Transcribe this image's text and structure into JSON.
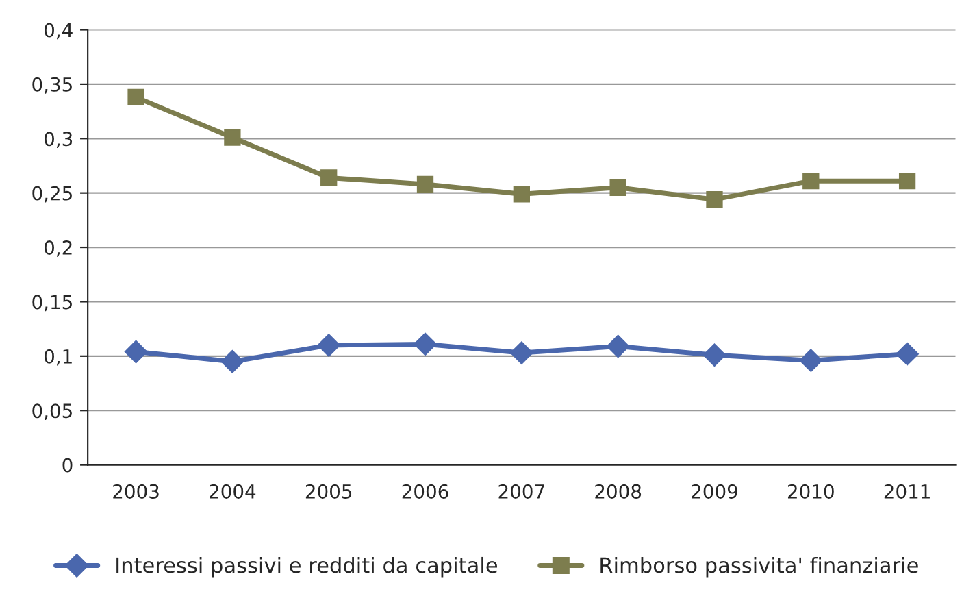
{
  "chart_data": {
    "type": "line",
    "categories": [
      "2003",
      "2004",
      "2005",
      "2006",
      "2007",
      "2008",
      "2009",
      "2010",
      "2011"
    ],
    "series": [
      {
        "name": "Interessi passivi e redditi da capitale",
        "color": "#4a67ad",
        "marker": "diamond",
        "values": [
          0.104,
          0.095,
          0.11,
          0.111,
          0.103,
          0.109,
          0.101,
          0.096,
          0.102
        ]
      },
      {
        "name": "Rimborso passivita' finanziarie",
        "color": "#7d7d4e",
        "marker": "square",
        "values": [
          0.338,
          0.301,
          0.264,
          0.258,
          0.249,
          0.255,
          0.244,
          0.261,
          0.261
        ]
      }
    ],
    "ylim": [
      0,
      0.4
    ],
    "yticks": [
      0,
      {
        "value": 0.05,
        "label": "0,05"
      },
      {
        "value": 0.1,
        "label": "0,1"
      },
      {
        "value": 0.15,
        "label": "0,15"
      },
      {
        "value": 0.2,
        "label": "0,2"
      },
      {
        "value": 0.25,
        "label": "0,25"
      },
      {
        "value": 0.3,
        "label": "0,3"
      },
      {
        "value": 0.35,
        "label": "0,35"
      },
      {
        "value": 0.4,
        "label": "0,4"
      }
    ],
    "grid": "y",
    "legend": "bottom",
    "line_style": "solid"
  }
}
